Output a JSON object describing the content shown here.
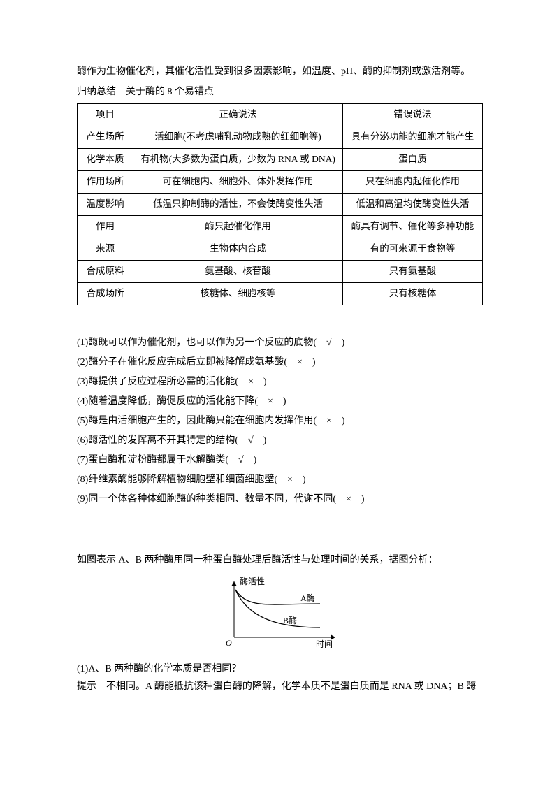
{
  "intro": {
    "line1_a": "酶作为生物催化剂，其催化活性受到很多因素影响，如温度、pH、酶的抑制剂或",
    "line1_u": "激活剂",
    "line1_b": "等。",
    "line2": "归纳总结　关于酶的 8 个易错点"
  },
  "table": {
    "headers": [
      "项目",
      "正确说法",
      "错误说法"
    ],
    "rows": [
      [
        "产生场所",
        "活细胞(不考虑哺乳动物成熟的红细胞等)",
        "具有分泌功能的细胞才能产生"
      ],
      [
        "化学本质",
        "有机物(大多数为蛋白质，少数为 RNA 或 DNA)",
        "蛋白质"
      ],
      [
        "作用场所",
        "可在细胞内、细胞外、体外发挥作用",
        "只在细胞内起催化作用"
      ],
      [
        "温度影响",
        "低温只抑制酶的活性，不会使酶变性失活",
        "低温和高温均使酶变性失活"
      ],
      [
        "作用",
        "酶只起催化作用",
        "酶具有调节、催化等多种功能"
      ],
      [
        "来源",
        "生物体内合成",
        "有的可来源于食物等"
      ],
      [
        "合成原料",
        "氨基酸、核苷酸",
        "只有氨基酸"
      ],
      [
        "合成场所",
        "核糖体、细胞核等",
        "只有核糖体"
      ]
    ]
  },
  "questions": [
    "(1)酶既可以作为催化剂，也可以作为另一个反应的底物(　√　)",
    "(2)酶分子在催化反应完成后立即被降解成氨基酸(　×　)",
    "(3)酶提供了反应过程所必需的活化能(　×　)",
    "(4)随着温度降低，酶促反应的活化能下降(　×　)",
    "(5)酶是由活细胞产生的，因此酶只能在细胞内发挥作用(　×　)",
    "(6)酶活性的发挥离不开其特定的结构(　√　)",
    "(7)蛋白酶和淀粉酶都属于水解酶类(　√　)",
    "(8)纤维素酶能够降解植物细胞壁和细菌细胞壁(　×　)",
    "(9)同一个体各种体细胞酶的种类相同、数量不同，代谢不同(　×　)"
  ],
  "graph": {
    "prompt": "如图表示 A、B 两种酶用同一种蛋白酶处理后酶活性与处理时间的关系，据图分析：",
    "ylabel": "酶活性",
    "xlabel": "时间",
    "labelA": "A酶",
    "labelB": "B酶",
    "origin": "O",
    "stroke": "#000000",
    "width": 190,
    "height": 110,
    "q1": "(1)A、B 两种酶的化学本质是否相同？",
    "hint": "提示　不相同。A 酶能抵抗该种蛋白酶的降解，化学本质不是蛋白质而是 RNA 或 DNA；B 酶"
  }
}
